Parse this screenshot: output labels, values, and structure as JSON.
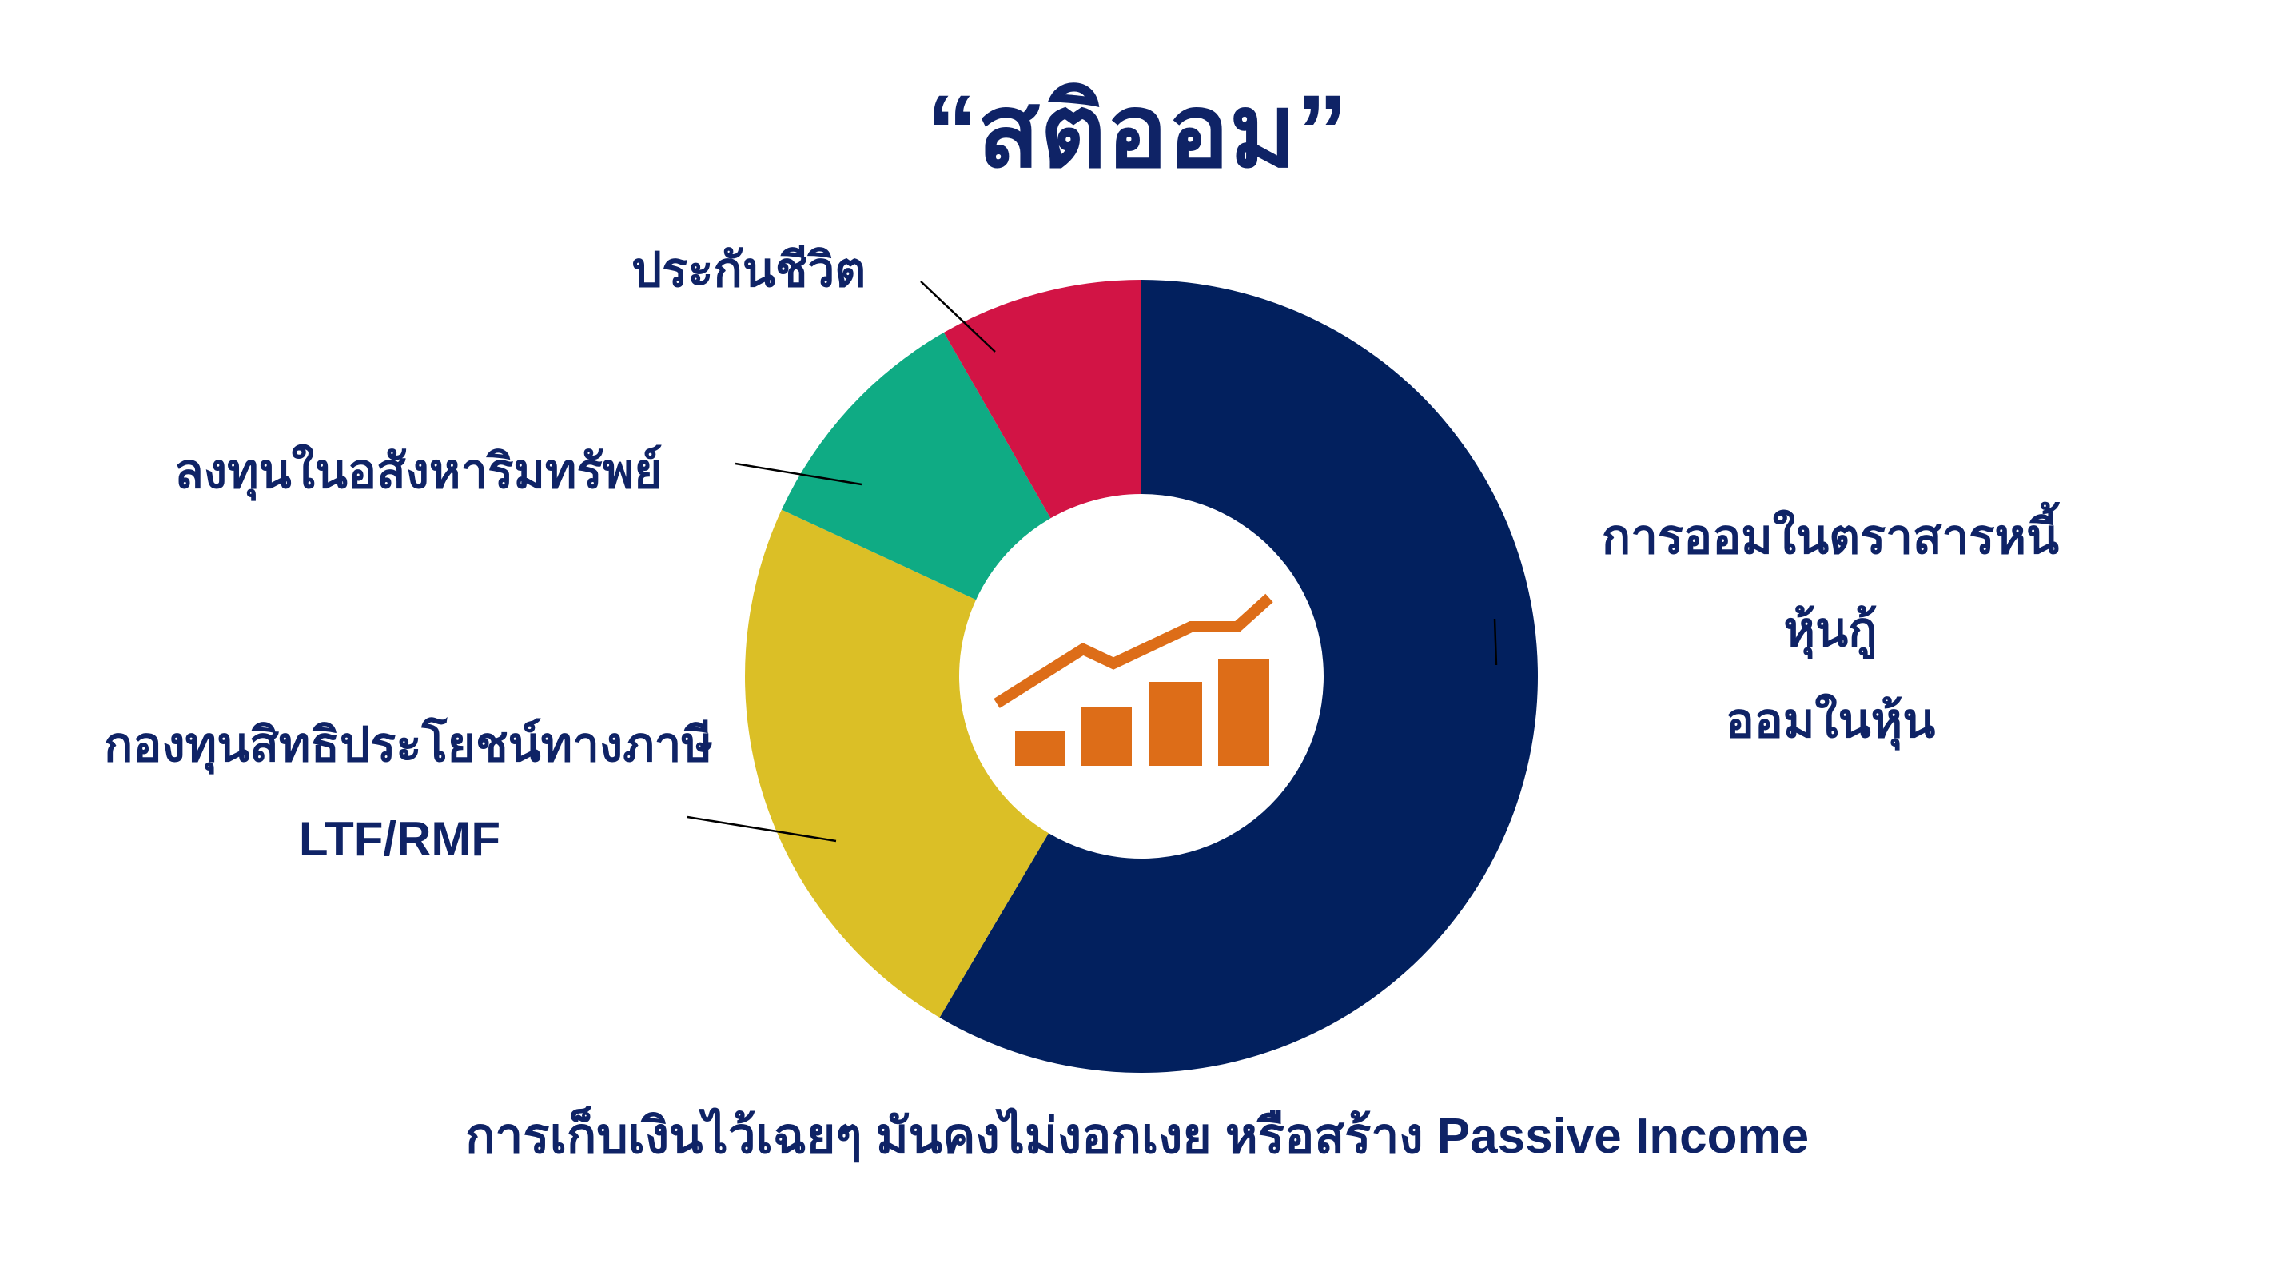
{
  "chart_data": {
    "type": "pie",
    "title": "“สติออม”",
    "subtitle": "การเก็บเงินไว้เฉยๆ มันคงไม่งอกเงย หรือสร้าง Passive Income",
    "slices": [
      {
        "label": "การออมในตราสารหนี้\nหุ้นกู้\nออมในหุ้น",
        "value": 58.5,
        "color": "#02205e"
      },
      {
        "label": "กองทุนสิทธิประโยชน์ทางภาษี\nLTF/RMF",
        "value": 23.4,
        "color": "#dbbf26"
      },
      {
        "label": "ลงทุนในอสังหาริมทรัพย์",
        "value": 9.8,
        "color": "#0fab84"
      },
      {
        "label": "ประกันชีวิต",
        "value": 8.3,
        "color": "#d21445"
      }
    ],
    "center_icon": "growth-chart-icon",
    "icon_color": "#dd6d18"
  },
  "labels": {
    "bonds_line1": "การออมในตราสารหนี้",
    "bonds_line2": "หุ้นกู้",
    "bonds_line3": "ออมในหุ้น",
    "fund_line1": "กองทุนสิทธิประโยชน์ทางภาษี",
    "fund_line2": "LTF/RMF",
    "realestate": "ลงทุนในอสังหาริมทรัพย์",
    "insurance": "ประกันชีวิต"
  }
}
